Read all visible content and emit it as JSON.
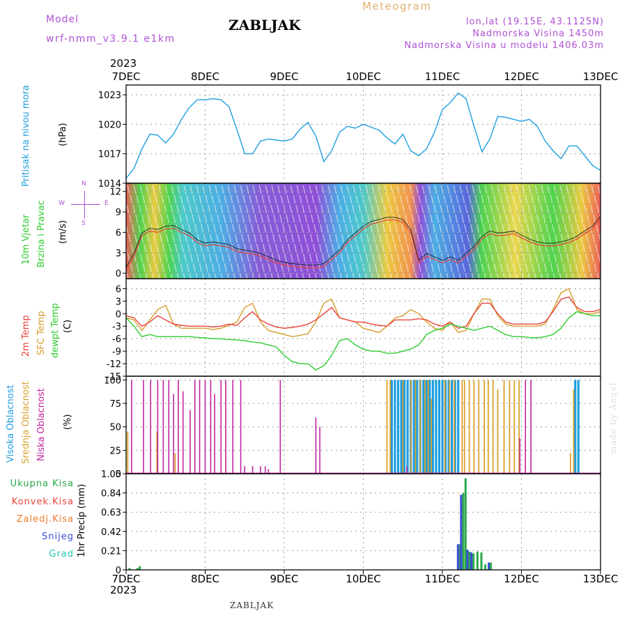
{
  "header": {
    "model_label": "Model",
    "model_name": "wrf-nmm_v3.9.1 e1km",
    "station_title": "ZABLJAK",
    "meteogram_label": "Meteogram",
    "lonlat": "lon,lat (19.15E, 43.1125N)",
    "elevation": "Nadmorska Visina 1450m",
    "model_elevation": "Nadmorska Visina u modelu 1406.03m",
    "year_top": "2023",
    "footer_station": "ZABLJAK",
    "watermark": "made by Angel",
    "year_bottom": "2023"
  },
  "colors": {
    "pressure": "#1f9ee0",
    "temp2m": "#e8433a",
    "sfc": "#d99b2b",
    "dewpt": "#2ecc2e",
    "high_cloud": "#1e9ee0",
    "mid_cloud": "#d9a22b",
    "low_cloud": "#c0249e",
    "total_precip": "#29a84a",
    "snow": "#3b4bd6",
    "grid": "#999999"
  },
  "chart_data": [
    {
      "type": "line",
      "panel": "pressure",
      "ylabel_1": "Pritisak na nivou mora",
      "ylabel_2": "(hPa)",
      "x_ticks": [
        "7DEC",
        "8DEC",
        "9DEC",
        "10DEC",
        "11DEC",
        "12DEC",
        "13DEC"
      ],
      "ylim": [
        1014,
        1024
      ],
      "y_ticks": [
        "1014",
        "1017",
        "1020",
        "1023"
      ],
      "grid": true,
      "series": [
        {
          "x": [
            0,
            0.1,
            0.2,
            0.3,
            0.4,
            0.5,
            0.6,
            0.7,
            0.8,
            0.9,
            1.0,
            1.1,
            1.2,
            1.3,
            1.4,
            1.5,
            1.6,
            1.7,
            1.8,
            1.9,
            2.0,
            2.1,
            2.2,
            2.3,
            2.4,
            2.5,
            2.6,
            2.7,
            2.8,
            2.9,
            3.0,
            3.1,
            3.2,
            3.3,
            3.4,
            3.5,
            3.6,
            3.7,
            3.8,
            3.9,
            4.0,
            4.1,
            4.2,
            4.3,
            4.4,
            4.5,
            4.6,
            4.7,
            4.8,
            4.9,
            5.0,
            5.1,
            5.2,
            5.3,
            5.4,
            5.5,
            5.6,
            5.7,
            5.8,
            5.9,
            6.0
          ],
          "values": [
            1014.5,
            1015.5,
            1017.5,
            1019.0,
            1018.9,
            1018.1,
            1019.0,
            1020.5,
            1021.7,
            1022.5,
            1022.5,
            1022.6,
            1022.5,
            1021.8,
            1019.5,
            1017.0,
            1017.0,
            1018.3,
            1018.5,
            1018.4,
            1018.3,
            1018.5,
            1019.5,
            1020.2,
            1018.8,
            1016.2,
            1017.3,
            1019.2,
            1019.8,
            1019.6,
            1020.0,
            1019.7,
            1019.4,
            1018.6,
            1018.0,
            1019.0,
            1017.3,
            1016.8,
            1017.5,
            1019.2,
            1021.5,
            1022.2,
            1023.2,
            1022.6,
            1019.8,
            1017.2,
            1018.5,
            1020.8,
            1020.7,
            1020.5,
            1020.3,
            1020.5,
            1019.8,
            1018.3,
            1017.3,
            1016.5,
            1017.8,
            1017.8,
            1016.8,
            1015.8,
            1015.3
          ]
        }
      ]
    },
    {
      "type": "line",
      "panel": "wind",
      "ylabel_1": "10m Vjetar",
      "ylabel_2": "Brzina i Pravac",
      "ylabel_3": "(m/s)",
      "compass": [
        "N",
        "S",
        "W",
        "E"
      ],
      "x_ticks": [
        "7DEC",
        "8DEC",
        "9DEC",
        "10DEC",
        "11DEC",
        "12DEC",
        "13DEC"
      ],
      "ylim": [
        -0.8,
        13.2
      ],
      "y_ticks": [
        "0",
        "3",
        "6",
        "9",
        "12"
      ],
      "grid": true,
      "series": [
        {
          "x": [
            0,
            0.1,
            0.2,
            0.3,
            0.4,
            0.5,
            0.6,
            0.7,
            0.8,
            0.9,
            1.0,
            1.1,
            1.2,
            1.3,
            1.4,
            1.5,
            1.6,
            1.7,
            1.8,
            1.9,
            2.0,
            2.1,
            2.2,
            2.3,
            2.4,
            2.5,
            2.6,
            2.7,
            2.8,
            2.9,
            3.0,
            3.1,
            3.2,
            3.3,
            3.4,
            3.5,
            3.6,
            3.7,
            3.8,
            3.9,
            4.0,
            4.1,
            4.2,
            4.3,
            4.4,
            4.5,
            4.6,
            4.7,
            4.8,
            4.9,
            5.0,
            5.1,
            5.2,
            5.3,
            5.4,
            5.5,
            5.6,
            5.7,
            5.8,
            5.9,
            6.0
          ],
          "values": [
            0.5,
            2.5,
            5.5,
            6.2,
            6.0,
            6.5,
            6.6,
            6.0,
            5.5,
            4.5,
            4.0,
            4.2,
            4.0,
            3.8,
            3.2,
            3.0,
            2.8,
            2.5,
            2.0,
            1.5,
            1.2,
            1.0,
            0.9,
            0.8,
            0.8,
            1.0,
            2.0,
            3.0,
            4.5,
            5.5,
            6.5,
            7.2,
            7.5,
            7.8,
            7.8,
            7.5,
            6.0,
            1.5,
            2.5,
            2.0,
            1.5,
            2.0,
            1.5,
            2.5,
            3.5,
            5.0,
            5.8,
            5.5,
            5.6,
            5.8,
            5.2,
            4.6,
            4.2,
            4.0,
            4.0,
            4.2,
            4.5,
            5.0,
            5.8,
            6.5,
            8.0
          ]
        }
      ]
    },
    {
      "type": "line",
      "panel": "temperature",
      "ylabel_1": "2m Temp",
      "ylabel_2": "SFC Temp",
      "ylabel_3": "dewpt Temp",
      "ylabel_4": "(C)",
      "x_ticks": [
        "7DEC",
        "8DEC",
        "9DEC",
        "10DEC",
        "11DEC",
        "12DEC",
        "13DEC"
      ],
      "ylim": [
        -15,
        8.4
      ],
      "y_ticks": [
        "6",
        "3",
        "0",
        "-3",
        "-6",
        "-9",
        "-12",
        "-15"
      ],
      "grid": true,
      "series": [
        {
          "name": "2m Temp",
          "x": [
            0,
            0.1,
            0.2,
            0.3,
            0.4,
            0.5,
            0.6,
            0.7,
            0.8,
            0.9,
            1.0,
            1.1,
            1.2,
            1.3,
            1.4,
            1.5,
            1.6,
            1.7,
            1.8,
            1.9,
            2.0,
            2.1,
            2.2,
            2.3,
            2.4,
            2.5,
            2.6,
            2.7,
            2.8,
            2.9,
            3.0,
            3.1,
            3.2,
            3.3,
            3.4,
            3.5,
            3.6,
            3.7,
            3.8,
            3.9,
            4.0,
            4.1,
            4.2,
            4.3,
            4.4,
            4.5,
            4.6,
            4.7,
            4.8,
            4.9,
            5.0,
            5.1,
            5.2,
            5.3,
            5.4,
            5.5,
            5.6,
            5.7,
            5.8,
            5.9,
            6.0
          ],
          "values": [
            -0.5,
            -1.0,
            -3.0,
            -2.0,
            -0.5,
            -1.5,
            -2.5,
            -2.8,
            -3.0,
            -3.0,
            -3.0,
            -3.2,
            -3.0,
            -2.5,
            -2.8,
            -1.0,
            0.5,
            -1.5,
            -2.5,
            -3.2,
            -3.5,
            -3.3,
            -3.0,
            -2.5,
            -1.5,
            0.0,
            1.5,
            -1.0,
            -1.5,
            -2.0,
            -2.0,
            -2.5,
            -2.8,
            -3.0,
            -1.5,
            -1.5,
            -1.5,
            -1.2,
            -1.5,
            -2.5,
            -3.0,
            -2.0,
            -3.5,
            -3.0,
            0.0,
            2.5,
            2.5,
            0.0,
            -2.0,
            -2.5,
            -2.5,
            -2.5,
            -2.5,
            -2.0,
            0.5,
            3.5,
            4.0,
            1.5,
            0.5,
            0.5,
            1.0
          ]
        },
        {
          "name": "SFC Temp",
          "x": [
            0,
            0.1,
            0.2,
            0.3,
            0.4,
            0.5,
            0.6,
            0.7,
            0.8,
            0.9,
            1.0,
            1.1,
            1.2,
            1.3,
            1.4,
            1.5,
            1.6,
            1.7,
            1.8,
            1.9,
            2.0,
            2.1,
            2.2,
            2.3,
            2.4,
            2.5,
            2.6,
            2.7,
            2.8,
            2.9,
            3.0,
            3.1,
            3.2,
            3.3,
            3.4,
            3.5,
            3.6,
            3.7,
            3.8,
            3.9,
            4.0,
            4.1,
            4.2,
            4.3,
            4.4,
            4.5,
            4.6,
            4.7,
            4.8,
            4.9,
            5.0,
            5.1,
            5.2,
            5.3,
            5.4,
            5.5,
            5.6,
            5.7,
            5.8,
            5.9,
            6.0
          ],
          "values": [
            -1.0,
            -1.5,
            -4.0,
            -1.5,
            1.0,
            2.0,
            -2.5,
            -3.5,
            -3.5,
            -3.5,
            -3.5,
            -3.8,
            -3.5,
            -2.8,
            -2.0,
            1.5,
            2.5,
            -2.0,
            -4.0,
            -4.5,
            -5.0,
            -5.5,
            -5.2,
            -4.8,
            -2.0,
            2.5,
            3.5,
            -1.0,
            -1.5,
            -2.0,
            -3.5,
            -4.0,
            -4.5,
            -3.0,
            -1.0,
            -0.5,
            1.0,
            0.0,
            -2.0,
            -3.5,
            -4.0,
            -2.0,
            -4.5,
            -4.0,
            0.0,
            3.5,
            3.5,
            -0.5,
            -2.5,
            -3.0,
            -3.0,
            -3.0,
            -3.0,
            -2.5,
            1.0,
            5.0,
            6.0,
            1.0,
            0.0,
            0.0,
            0.5
          ]
        },
        {
          "name": "dewpt Temp",
          "x": [
            0,
            0.1,
            0.2,
            0.3,
            0.4,
            0.5,
            0.6,
            0.7,
            0.8,
            0.9,
            1.0,
            1.1,
            1.2,
            1.3,
            1.4,
            1.5,
            1.6,
            1.7,
            1.8,
            1.9,
            2.0,
            2.1,
            2.2,
            2.3,
            2.4,
            2.5,
            2.6,
            2.7,
            2.8,
            2.9,
            3.0,
            3.1,
            3.2,
            3.3,
            3.4,
            3.5,
            3.6,
            3.7,
            3.8,
            3.9,
            4.0,
            4.1,
            4.2,
            4.3,
            4.4,
            4.5,
            4.6,
            4.7,
            4.8,
            4.9,
            5.0,
            5.1,
            5.2,
            5.3,
            5.4,
            5.5,
            5.6,
            5.7,
            5.8,
            5.9,
            6.0
          ],
          "values": [
            -1.0,
            -3.0,
            -5.5,
            -5.0,
            -5.5,
            -5.5,
            -5.5,
            -5.5,
            -5.5,
            -5.7,
            -5.8,
            -6.0,
            -6.0,
            -6.2,
            -6.3,
            -6.5,
            -6.8,
            -7.0,
            -7.5,
            -8.0,
            -10.0,
            -11.5,
            -12.0,
            -12.0,
            -13.5,
            -12.5,
            -10.0,
            -6.5,
            -6.0,
            -7.5,
            -8.5,
            -9.0,
            -9.0,
            -9.5,
            -9.5,
            -9.0,
            -8.5,
            -7.5,
            -5.0,
            -4.0,
            -3.5,
            -2.5,
            -3.0,
            -3.5,
            -4.0,
            -3.5,
            -3.0,
            -4.0,
            -5.0,
            -5.5,
            -5.5,
            -5.7,
            -5.8,
            -5.5,
            -5.0,
            -3.5,
            -1.0,
            0.5,
            0.0,
            -0.5,
            -0.5
          ]
        }
      ]
    },
    {
      "type": "bar",
      "panel": "clouds",
      "ylabel_1": "Visoka Oblacnost",
      "ylabel_2": "Srednja Oblacnost",
      "ylabel_3": "Niska Oblacnost",
      "ylabel_4": "(%)",
      "x_ticks": [
        "7DEC",
        "8DEC",
        "9DEC",
        "10DEC",
        "11DEC",
        "12DEC",
        "13DEC"
      ],
      "ylim": [
        0,
        104
      ],
      "y_ticks": [
        "0",
        "25",
        "50",
        "75",
        "100"
      ],
      "grid": true,
      "series": [
        {
          "name": "Visoka Oblacnost",
          "x": [
            3.36,
            3.4,
            3.44,
            3.48,
            3.52,
            3.56,
            3.6,
            3.64,
            3.68,
            3.72,
            3.76,
            3.8,
            3.84,
            3.88,
            3.92,
            3.96,
            4.0,
            4.04,
            4.08,
            4.12,
            4.16,
            4.2,
            5.68,
            5.72
          ],
          "values": [
            100,
            100,
            100,
            100,
            100,
            100,
            100,
            100,
            100,
            100,
            100,
            100,
            100,
            100,
            100,
            100,
            100,
            100,
            100,
            100,
            100,
            100,
            100,
            100
          ]
        },
        {
          "name": "Srednja Oblacnost",
          "x": [
            0.02,
            0.39,
            0.62,
            3.3,
            3.34,
            3.5,
            3.6,
            3.66,
            3.72,
            3.78,
            3.82,
            3.86,
            4.03,
            4.09,
            4.15,
            4.25,
            4.28,
            4.34,
            4.4,
            4.46,
            4.53,
            4.58,
            4.64,
            4.7,
            4.78,
            4.85,
            4.91,
            4.97,
            5.62,
            5.66
          ],
          "values": [
            45,
            45,
            22,
            100,
            100,
            100,
            100,
            100,
            100,
            100,
            100,
            80,
            100,
            100,
            100,
            100,
            100,
            100,
            100,
            100,
            100,
            100,
            100,
            90,
            100,
            100,
            100,
            100,
            22,
            90
          ]
        },
        {
          "name": "Niska Oblacnost",
          "x": [
            0.07,
            0.22,
            0.31,
            0.4,
            0.47,
            0.54,
            0.6,
            0.66,
            0.72,
            0.81,
            0.87,
            0.93,
            1.0,
            1.07,
            1.12,
            1.2,
            1.26,
            1.35,
            1.45,
            1.5,
            1.6,
            1.7,
            1.76,
            1.8,
            1.95,
            2.4,
            2.45,
            3.55,
            4.98,
            5.05,
            5.12
          ],
          "values": [
            100,
            100,
            100,
            100,
            100,
            100,
            85,
            100,
            88,
            68,
            100,
            100,
            100,
            100,
            85,
            100,
            100,
            100,
            100,
            8,
            8,
            8,
            8,
            5,
            100,
            60,
            50,
            8,
            38,
            100,
            100
          ]
        }
      ]
    },
    {
      "type": "bar",
      "panel": "precipitation",
      "ylabel": "1hr Precip (mm)",
      "legend": [
        "Ukupna Kisa",
        "Konvek.Kisa",
        "Zaledj.Kisa",
        "Snijeg",
        "Grad"
      ],
      "legend_colors": [
        "#29a84a",
        "#e8433a",
        "#ef7a2a",
        "#3b4bd6",
        "#22c3b4"
      ],
      "x_ticks": [
        "7DEC",
        "8DEC",
        "9DEC",
        "10DEC",
        "11DEC",
        "12DEC",
        "13DEC"
      ],
      "ylim": [
        0,
        1.05
      ],
      "y_ticks": [
        "0",
        "0.21",
        "0.42",
        "0.63",
        "0.84",
        "1.05"
      ],
      "grid": true,
      "series": [
        {
          "name": "Ukupna Kisa",
          "x": [
            0.03,
            0.13,
            0.16,
            4.21,
            4.25,
            4.28,
            4.33,
            4.38,
            4.43,
            4.48,
            4.53,
            4.6
          ],
          "values": [
            0.02,
            0.02,
            0.04,
            0.28,
            0.84,
            1.0,
            0.2,
            0.18,
            0.2,
            0.19,
            0.06,
            0.08
          ]
        },
        {
          "name": "Snijeg",
          "x": [
            4.21,
            4.25,
            4.28,
            4.33,
            4.38,
            4.43,
            4.48,
            4.53,
            4.6
          ],
          "values": [
            0.28,
            0.82,
            0.0,
            0.22,
            0.19,
            0.0,
            0.0,
            0.0,
            0.08
          ]
        }
      ]
    }
  ]
}
